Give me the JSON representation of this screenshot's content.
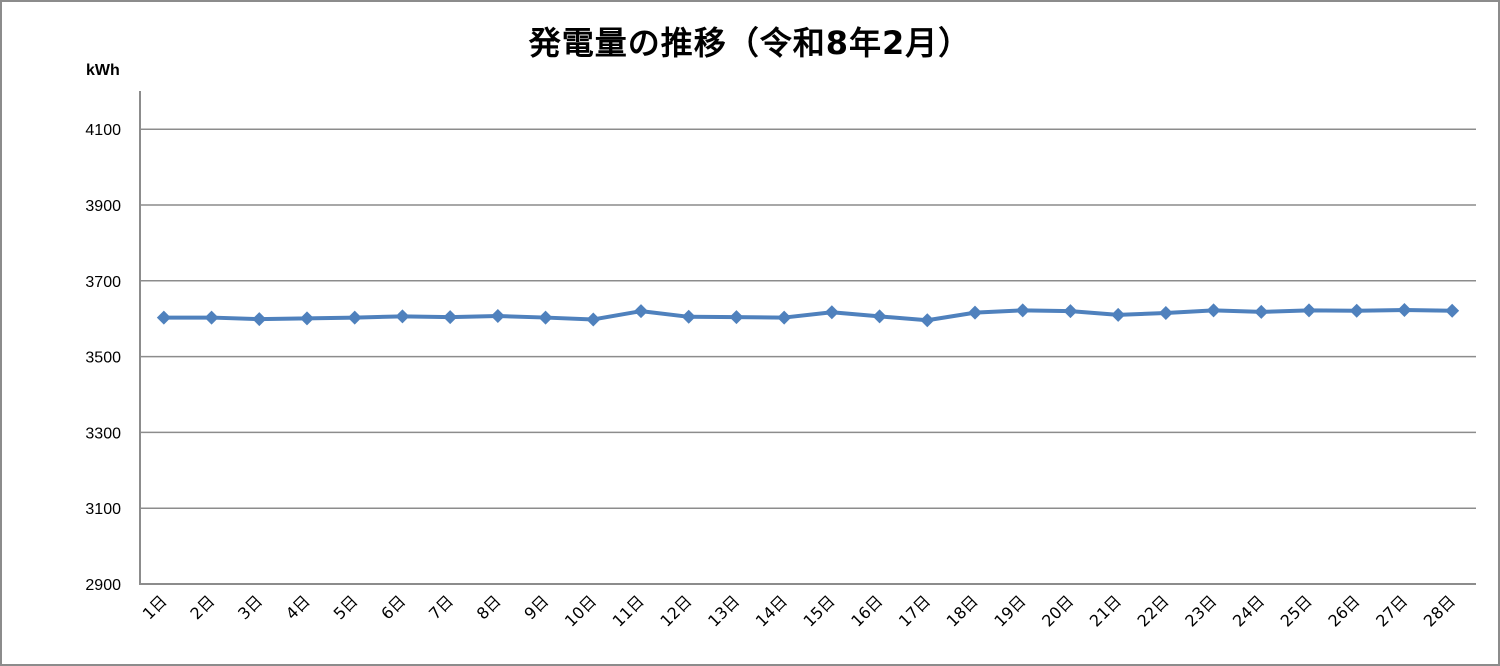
{
  "chart_data": {
    "type": "line",
    "title": "発電量の推移（令和8年2月）",
    "xlabel": "",
    "ylabel": "kWh",
    "ylim": [
      2900,
      4200
    ],
    "yticks": [
      2900,
      3100,
      3300,
      3500,
      3700,
      3900,
      4100
    ],
    "grid": true,
    "legend": null,
    "categories": [
      "1日",
      "2日",
      "3日",
      "4日",
      "5日",
      "6日",
      "7日",
      "8日",
      "9日",
      "10日",
      "11日",
      "12日",
      "13日",
      "14日",
      "15日",
      "16日",
      "17日",
      "18日",
      "19日",
      "20日",
      "21日",
      "22日",
      "23日",
      "24日",
      "25日",
      "26日",
      "27日",
      "28日"
    ],
    "series": [
      {
        "name": "発電量",
        "color": "#4f81bd",
        "marker": "diamond",
        "values": [
          3603,
          3603,
          3599,
          3601,
          3603,
          3606,
          3604,
          3607,
          3603,
          3598,
          3620,
          3605,
          3604,
          3603,
          3617,
          3606,
          3596,
          3616,
          3622,
          3620,
          3610,
          3615,
          3622,
          3618,
          3622,
          3621,
          3623,
          3621
        ]
      }
    ]
  },
  "header": {
    "title": "発電量の推移（令和8年2月）",
    "unit": "kWh"
  },
  "colors": {
    "line": "#4f81bd",
    "grid": "#8c8c8c",
    "border": "#8c8c8c"
  }
}
